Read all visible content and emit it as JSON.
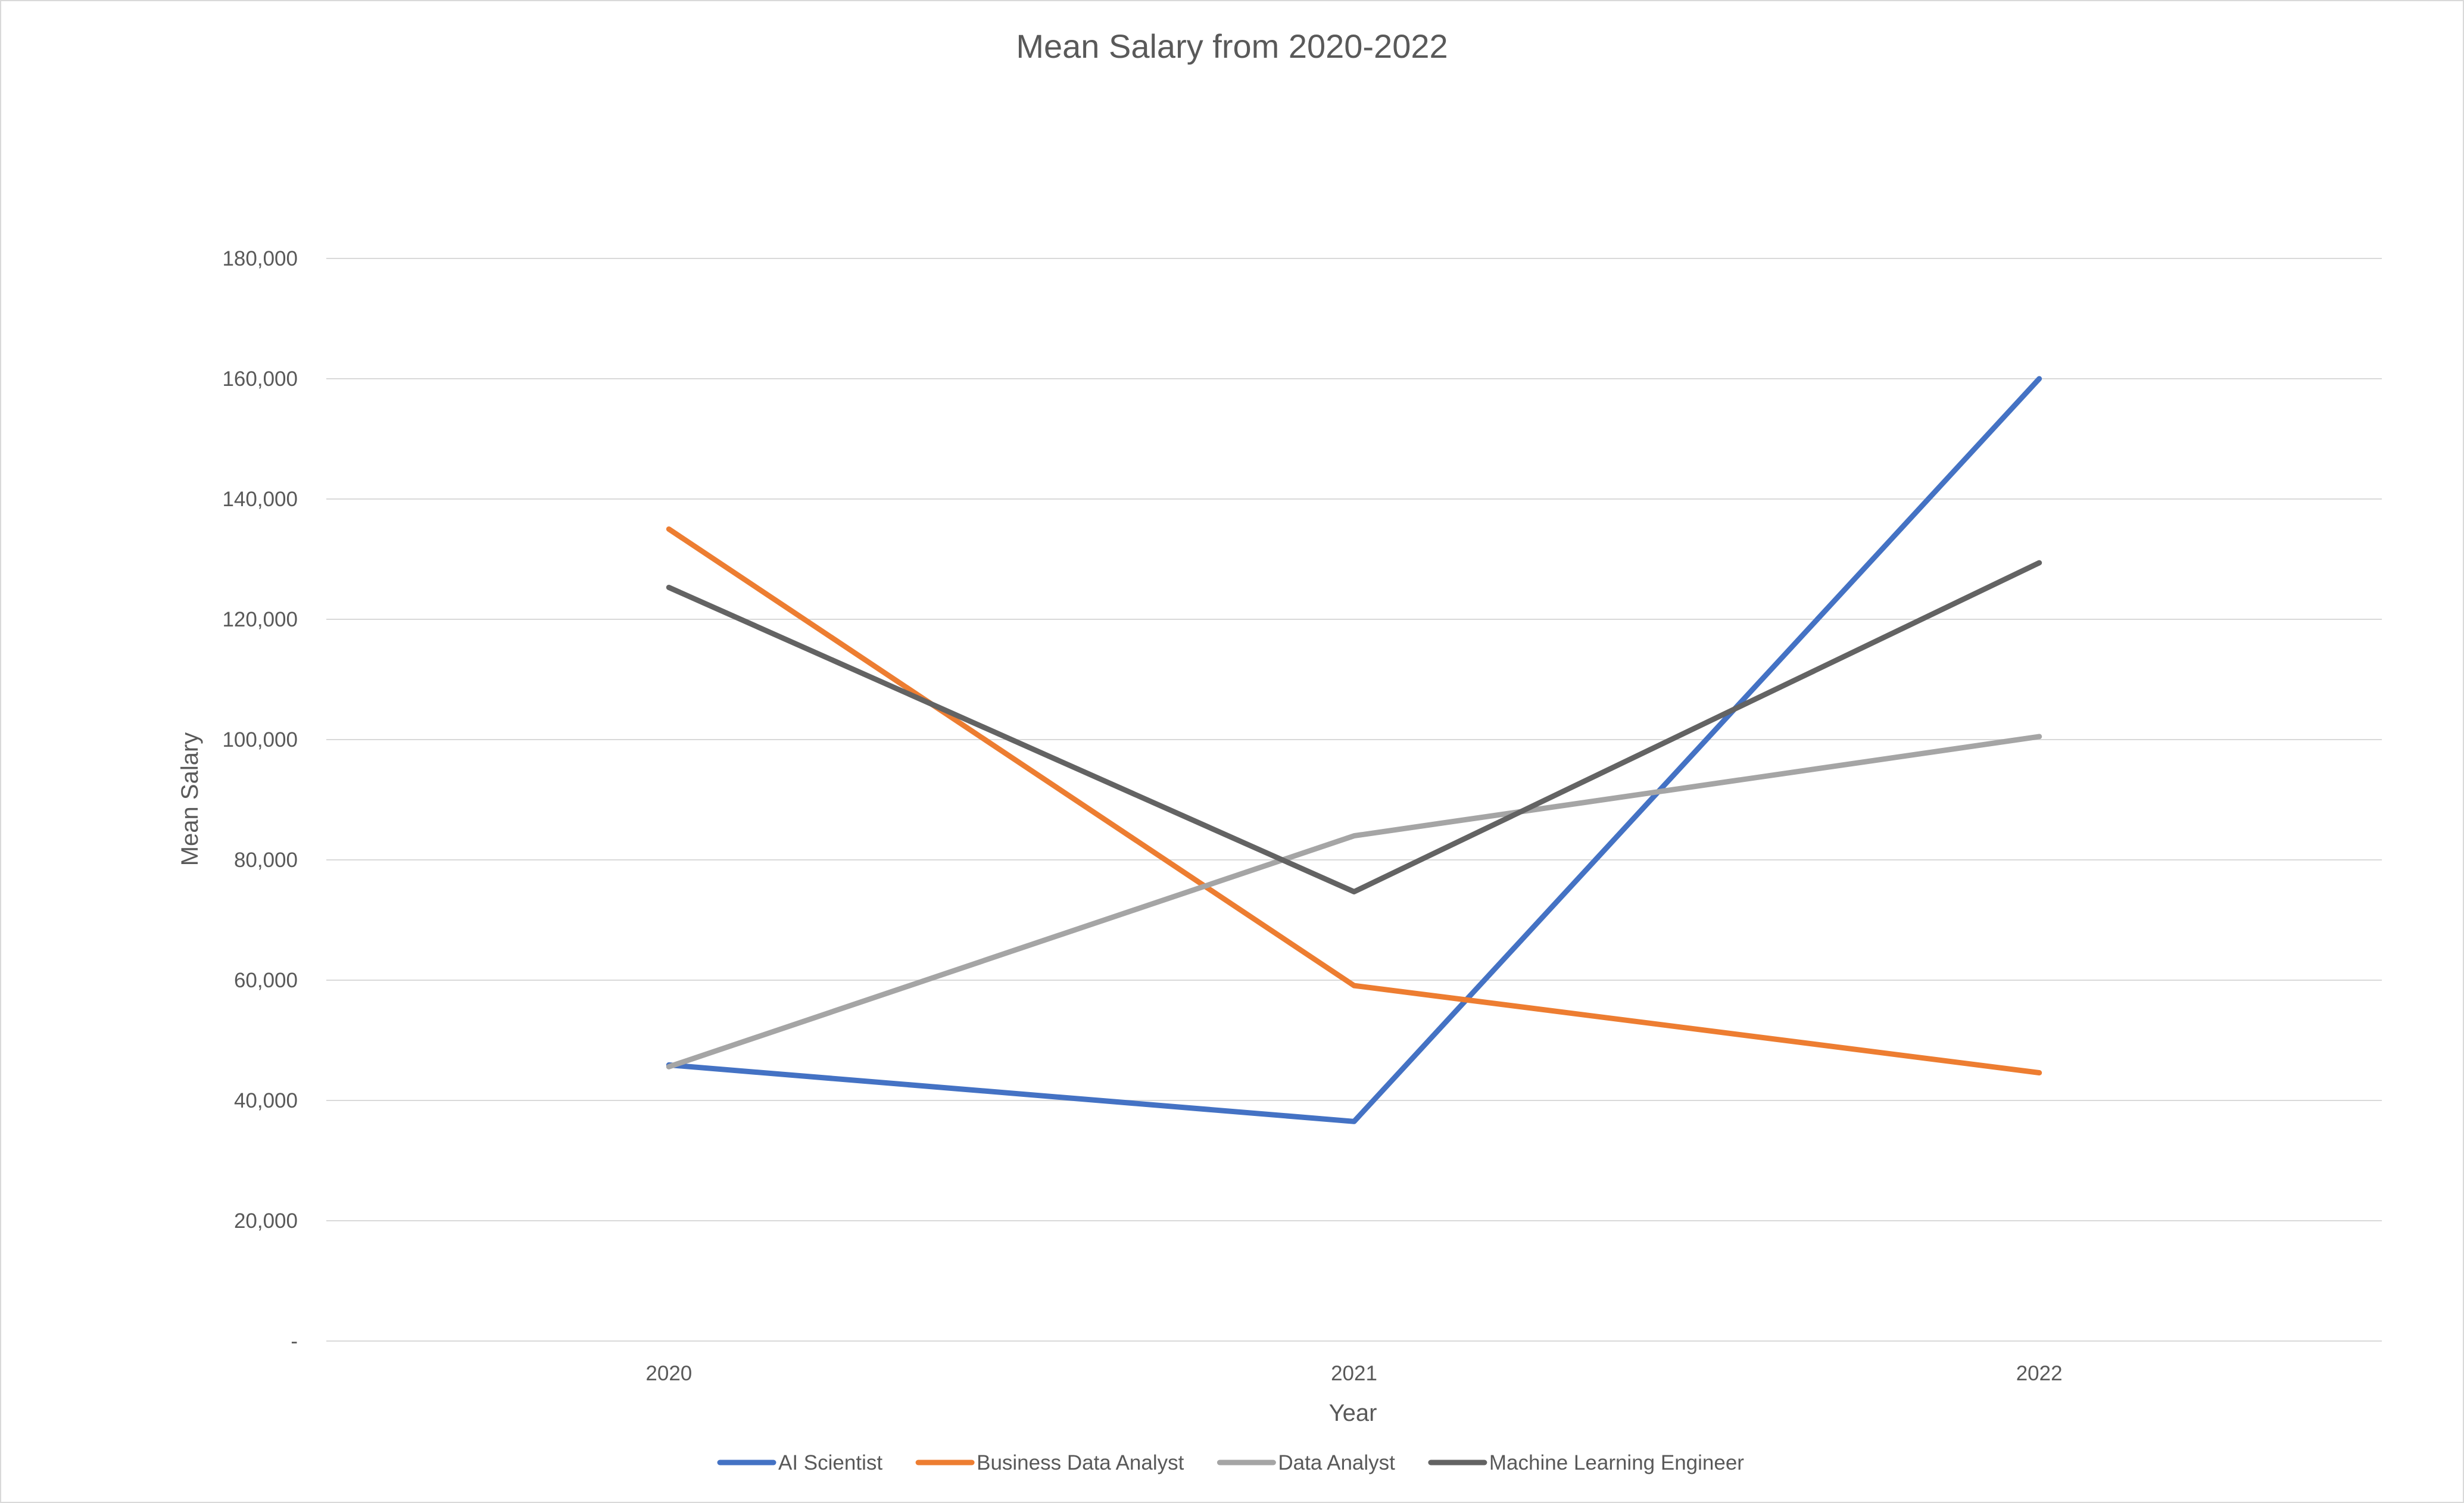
{
  "chart_data": {
    "type": "line",
    "title": "Mean Salary from 2020-2022",
    "xlabel": "Year",
    "ylabel": "Mean Salary",
    "categories": [
      "2020",
      "2021",
      "2022"
    ],
    "ylim": [
      0,
      180000
    ],
    "y_ticks": [
      0,
      20000,
      40000,
      60000,
      80000,
      100000,
      120000,
      140000,
      160000,
      180000
    ],
    "y_tick_labels": [
      "-",
      "20,000",
      "40,000",
      "60,000",
      "80,000",
      "100,000",
      "120,000",
      "140,000",
      "160,000",
      "180,000"
    ],
    "grid": true,
    "legend_position": "bottom",
    "series": [
      {
        "name": "AI Scientist",
        "color": "#4472c4",
        "values": [
          45900,
          36500,
          160000
        ]
      },
      {
        "name": "Business Data Analyst",
        "color": "#ed7d31",
        "values": [
          135000,
          59100,
          44600
        ]
      },
      {
        "name": "Data Analyst",
        "color": "#a5a5a5",
        "values": [
          45600,
          84000,
          100500
        ]
      },
      {
        "name": "Machine Learning Engineer",
        "color": "#636363",
        "values": [
          125300,
          74700,
          129400
        ]
      }
    ]
  }
}
